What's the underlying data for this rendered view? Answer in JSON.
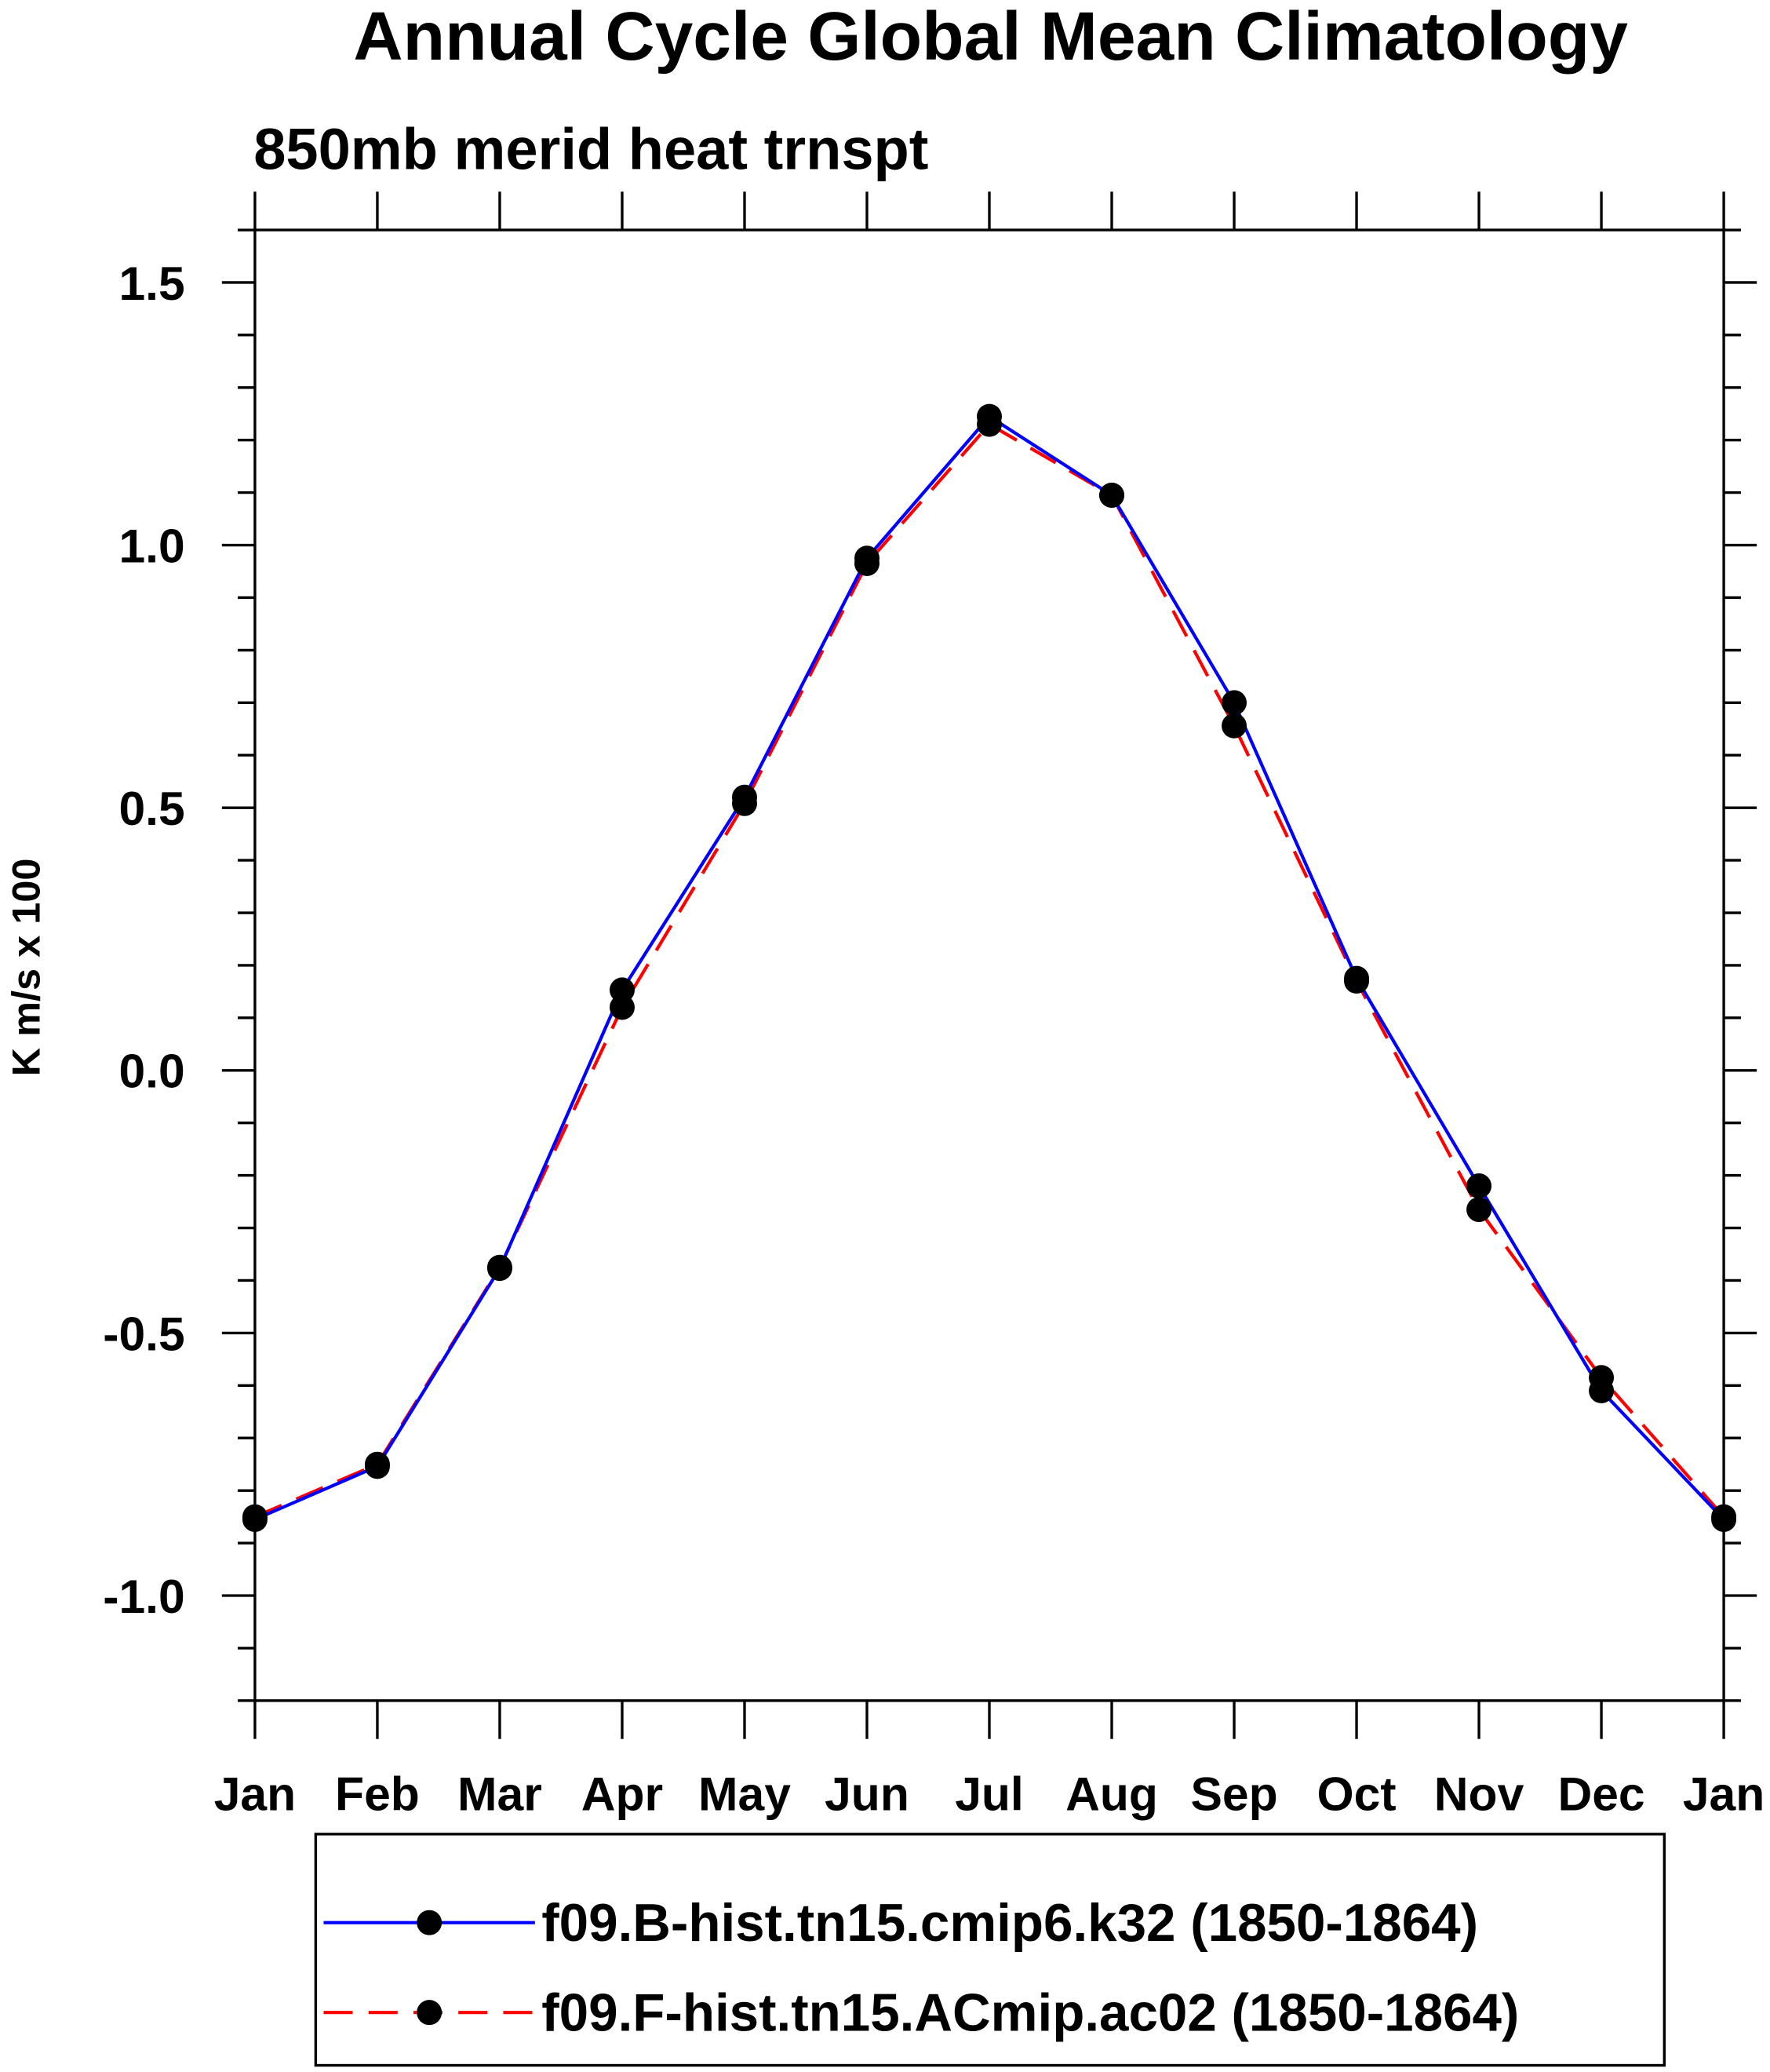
{
  "chart_data": {
    "type": "line",
    "title": "Annual Cycle Global Mean Climatology",
    "subtitle": "850mb merid heat trnspt",
    "xlabel": "",
    "ylabel": "K m/s x 100",
    "categories": [
      "Jan",
      "Feb",
      "Mar",
      "Apr",
      "May",
      "Jun",
      "Jul",
      "Aug",
      "Sep",
      "Oct",
      "Nov",
      "Dec",
      "Jan"
    ],
    "ylim": [
      -1.2,
      1.6
    ],
    "yticks": [
      -1.0,
      -0.5,
      0.0,
      0.5,
      1.0,
      1.5
    ],
    "ytick_labels": [
      "-1.0",
      "-0.5",
      "0.0",
      "0.5",
      "1.0",
      "1.5"
    ],
    "grid": false,
    "legend_placement": "bottom",
    "series": [
      {
        "name": "f09.B-hist.tn15.cmip6.k32 (1850-1864)",
        "color": "#0000ff",
        "dash": "solid",
        "values": [
          -0.855,
          -0.754,
          -0.377,
          0.153,
          0.52,
          0.975,
          1.245,
          1.095,
          0.7,
          0.175,
          -0.22,
          -0.61,
          -0.855
        ]
      },
      {
        "name": "f09.F-hist.tn15.ACmip.ac02 (1850-1864)",
        "color": "#ff0000",
        "dash": "dashed",
        "values": [
          -0.85,
          -0.75,
          -0.375,
          0.12,
          0.508,
          0.965,
          1.23,
          1.095,
          0.656,
          0.17,
          -0.265,
          -0.585,
          -0.85
        ]
      }
    ]
  }
}
